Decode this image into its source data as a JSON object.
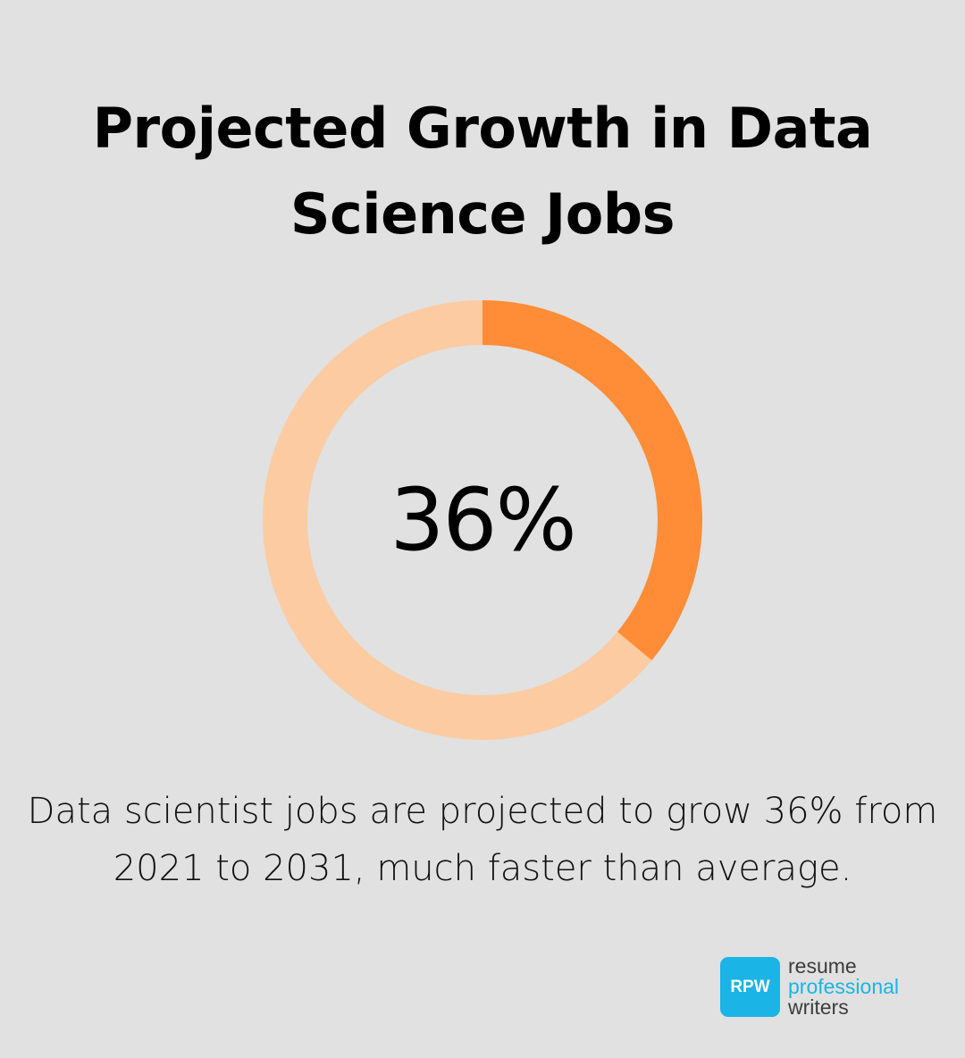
{
  "title": "Projected Growth in Data Science Jobs",
  "chart_data": {
    "type": "pie",
    "variant": "donut",
    "value_percent": 36,
    "center_label": "36%",
    "colors": {
      "filled": "#ff8c36",
      "remainder": "#fccba2"
    }
  },
  "caption": "Data scientist jobs are projected to grow 36% from 2021 to 2031, much faster than average.",
  "logo": {
    "badge": "RPW",
    "line1": "resume",
    "line2": "professional",
    "line3": "writers"
  }
}
